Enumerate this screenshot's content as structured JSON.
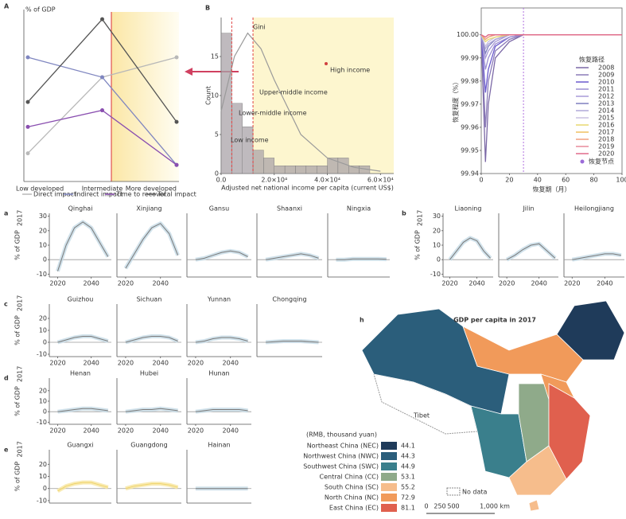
{
  "chart_data": [
    {
      "type": "line",
      "panel_label": "A",
      "ylabel": "% of GDP",
      "categories": [
        "Low developed",
        "Intermediate",
        "More developed"
      ],
      "ylim": [
        0,
        100
      ],
      "series": [
        {
          "name": "Direct impact",
          "color": "#b8b8b8",
          "values": [
            17,
            63,
            75
          ]
        },
        {
          "name": "Indirect impact",
          "color": "#7f86c0",
          "values": [
            75,
            63,
            10
          ]
        },
        {
          "name": "Time to recover",
          "color": "#8a4fb0",
          "values": [
            33,
            43,
            10
          ]
        },
        {
          "name": "Total impact",
          "color": "#555555",
          "values": [
            48,
            98,
            36
          ]
        }
      ]
    },
    {
      "type": "histogram",
      "panel_label": "B",
      "ylabel": "Count",
      "xlabel": "Adjusted net national income per capita (current US$)",
      "bins": [
        0,
        4000,
        8000,
        12000,
        16000,
        20000,
        24000,
        28000,
        32000,
        36000,
        40000,
        44000,
        48000,
        52000,
        56000,
        60000,
        64000
      ],
      "counts": [
        18,
        9,
        6,
        3,
        2,
        1,
        1,
        1,
        1,
        1,
        2,
        2,
        1,
        1,
        0,
        0
      ],
      "color": "#a9a3a8",
      "xlim": [
        0,
        65000
      ],
      "ylim": [
        0,
        20
      ],
      "xticks": [
        {
          "value": 0,
          "label": "0.0"
        },
        {
          "value": 20000,
          "label": "2.0×10⁴"
        },
        {
          "value": 40000,
          "label": "4.0×10⁴"
        },
        {
          "value": 60000,
          "label": "6.0×10⁴"
        }
      ],
      "yticks": [
        0,
        5,
        10,
        15
      ],
      "curve": {
        "x": [
          0,
          5000,
          10000,
          15000,
          20000,
          30000,
          40000,
          50000,
          60000
        ],
        "values": [
          8,
          15,
          18,
          16,
          12,
          5,
          2,
          0.8,
          0.3
        ],
        "color": "#9a9a9a"
      },
      "thresholds": [
        4000,
        12000
      ],
      "annotations": [
        "Gini",
        "Upper-middle income",
        "Lower-middle income",
        "Low income",
        "High income"
      ]
    },
    {
      "type": "line",
      "ylabel": "恢复程度（%）",
      "xlabel": "恢复期（月）",
      "x": [
        0,
        3,
        5,
        10,
        20,
        30,
        50,
        100
      ],
      "xlim": [
        0,
        100
      ],
      "ylim": [
        99.94,
        100.003
      ],
      "xticks": [
        0,
        20,
        40,
        60,
        80,
        100
      ],
      "yticks": [
        99.94,
        99.95,
        99.96,
        99.97,
        99.98,
        99.99,
        {
          "value": 100,
          "label": "100.00"
        }
      ],
      "legend_title": "恢复路径",
      "node_label": "恢复节点",
      "node_x": 30,
      "series": [
        {
          "name": "2008",
          "color": "#7b68a6",
          "values": [
            100,
            99.945,
            99.97,
            99.99,
            99.997,
            100,
            100,
            100
          ]
        },
        {
          "name": "2009",
          "color": "#8a7ab8",
          "values": [
            100,
            99.96,
            99.98,
            99.993,
            99.998,
            100,
            100,
            100
          ]
        },
        {
          "name": "2010",
          "color": "#6a5acd",
          "values": [
            100,
            99.975,
            99.985,
            99.995,
            99.999,
            100,
            100,
            100
          ]
        },
        {
          "name": "2011",
          "color": "#9b8fd0",
          "values": [
            100,
            99.985,
            99.99,
            99.996,
            99.999,
            100,
            100,
            100
          ]
        },
        {
          "name": "2012",
          "color": "#a99bd8",
          "values": [
            100,
            99.99,
            99.993,
            99.997,
            100,
            100,
            100,
            100
          ]
        },
        {
          "name": "2013",
          "color": "#7f7fbf",
          "values": [
            100,
            99.992,
            99.995,
            99.998,
            100,
            100,
            100,
            100
          ]
        },
        {
          "name": "2014",
          "color": "#b0a8d8",
          "values": [
            100,
            99.994,
            99.996,
            99.998,
            100,
            100,
            100,
            100
          ]
        },
        {
          "name": "2015",
          "color": "#c8c0e0",
          "values": [
            100,
            99.995,
            99.997,
            99.999,
            100,
            100,
            100,
            100
          ]
        },
        {
          "name": "2016",
          "color": "#e8d870",
          "values": [
            100,
            99.997,
            99.998,
            99.999,
            100,
            100,
            100,
            100
          ]
        },
        {
          "name": "2017",
          "color": "#f0c060",
          "values": [
            100,
            99.998,
            99.999,
            100,
            100,
            100,
            100,
            100
          ]
        },
        {
          "name": "2018",
          "color": "#f0a080",
          "values": [
            100,
            99.998,
            99.999,
            100,
            100,
            100,
            100,
            100
          ]
        },
        {
          "name": "2019",
          "color": "#e88a9a",
          "values": [
            100,
            99.999,
            100,
            100,
            100,
            100,
            100,
            100
          ]
        },
        {
          "name": "2020",
          "color": "#e06a8a",
          "values": [
            100,
            99.999,
            100,
            100,
            100,
            100,
            100,
            100
          ]
        }
      ]
    },
    {
      "type": "line",
      "panel_label": "a",
      "title": "Qinghai",
      "ylabel": "% of GDP",
      "ylabel_sub": "2017",
      "x": [
        2020,
        2025,
        2030,
        2035,
        2040,
        2045,
        2050
      ],
      "values": [
        -8,
        10,
        22,
        26,
        22,
        12,
        2
      ],
      "color": "#7a7a7a",
      "xlim": [
        2015,
        2052
      ],
      "ylim": [
        -12,
        32
      ],
      "xticks": [
        2020,
        2040
      ],
      "yticks": [
        -10,
        0,
        10,
        20,
        30
      ]
    },
    {
      "type": "line",
      "title": "Xinjiang",
      "x": [
        2020,
        2025,
        2030,
        2035,
        2040,
        2045,
        2050
      ],
      "values": [
        -6,
        4,
        14,
        22,
        25,
        18,
        3
      ],
      "color": "#7a7a7a",
      "xlim": [
        2015,
        2052
      ],
      "ylim": [
        -12,
        32
      ],
      "xticks": [
        2020,
        2040
      ]
    },
    {
      "type": "line",
      "title": "Gansu",
      "x": [
        2020,
        2025,
        2030,
        2035,
        2040,
        2045,
        2050
      ],
      "values": [
        0,
        1,
        3,
        5,
        6,
        5,
        2
      ],
      "color": "#7a7a7a",
      "xlim": [
        2015,
        2052
      ],
      "ylim": [
        -12,
        32
      ]
    },
    {
      "type": "line",
      "title": "Shaanxi",
      "x": [
        2020,
        2025,
        2030,
        2035,
        2040,
        2045,
        2050
      ],
      "values": [
        0,
        1,
        2,
        3,
        4,
        3,
        1
      ],
      "color": "#7a7a7a",
      "xlim": [
        2015,
        2052
      ],
      "ylim": [
        -12,
        32
      ]
    },
    {
      "type": "line",
      "title": "Ningxia",
      "x": [
        2020,
        2025,
        2030,
        2035,
        2040,
        2045,
        2050
      ],
      "values": [
        0,
        0,
        0.5,
        0.5,
        0.5,
        0.5,
        0.3
      ],
      "color": "#7a7a7a",
      "xlim": [
        2015,
        2052
      ],
      "ylim": [
        -12,
        32
      ]
    },
    {
      "type": "line",
      "panel_label": "b",
      "title": "Liaoning",
      "ylabel": "% of GDP",
      "ylabel_sub": "2017",
      "x": [
        2020,
        2025,
        2030,
        2035,
        2040,
        2045,
        2050
      ],
      "values": [
        0,
        6,
        12,
        15,
        13,
        6,
        1
      ],
      "color": "#7a7a7a",
      "xlim": [
        2015,
        2052
      ],
      "ylim": [
        -12,
        32
      ],
      "xticks": [
        2020,
        2040
      ],
      "yticks": [
        -10,
        0,
        10,
        20,
        30
      ]
    },
    {
      "type": "line",
      "title": "Jilin",
      "x": [
        2020,
        2025,
        2030,
        2035,
        2040,
        2045,
        2050
      ],
      "values": [
        0,
        3,
        7,
        10,
        11,
        6,
        1
      ],
      "color": "#7a7a7a",
      "xlim": [
        2015,
        2052
      ],
      "ylim": [
        -12,
        32
      ],
      "xticks": [
        2020,
        2040
      ]
    },
    {
      "type": "line",
      "title": "Heilongjiang",
      "x": [
        2020,
        2025,
        2030,
        2035,
        2040,
        2045,
        2050
      ],
      "values": [
        0,
        1,
        2,
        3,
        4,
        4,
        3
      ],
      "color": "#7a7a7a",
      "xlim": [
        2015,
        2052
      ],
      "ylim": [
        -12,
        32
      ],
      "xticks": [
        2020,
        2040
      ]
    },
    {
      "type": "line",
      "panel_label": "c",
      "title": "Guizhou",
      "ylabel": "% of GDP",
      "ylabel_sub": "2017",
      "x": [
        2020,
        2025,
        2030,
        2035,
        2040,
        2045,
        2050
      ],
      "values": [
        0,
        2,
        4,
        5,
        5,
        3,
        1
      ],
      "color": "#7a7a7a",
      "xlim": [
        2015,
        2052
      ],
      "ylim": [
        -12,
        32
      ],
      "xticks": [
        2020,
        2040
      ],
      "yticks": [
        -10,
        0,
        10,
        20
      ]
    },
    {
      "type": "line",
      "title": "Sichuan",
      "x": [
        2020,
        2025,
        2030,
        2035,
        2040,
        2045,
        2050
      ],
      "values": [
        0,
        2,
        4,
        5,
        5,
        4,
        1
      ],
      "color": "#7a7a7a",
      "xlim": [
        2015,
        2052
      ],
      "ylim": [
        -12,
        32
      ],
      "xticks": [
        2020,
        2040
      ]
    },
    {
      "type": "line",
      "title": "Yunnan",
      "x": [
        2020,
        2025,
        2030,
        2035,
        2040,
        2045,
        2050
      ],
      "values": [
        0,
        1,
        3,
        4,
        4,
        3,
        1
      ],
      "color": "#7a7a7a",
      "xlim": [
        2015,
        2052
      ],
      "ylim": [
        -12,
        32
      ],
      "xticks": [
        2020,
        2040
      ]
    },
    {
      "type": "line",
      "title": "Chongqing",
      "x": [
        2020,
        2025,
        2030,
        2035,
        2040,
        2045,
        2050
      ],
      "values": [
        0,
        0.5,
        1,
        1,
        1,
        0.5,
        0
      ],
      "color": "#7a7a7a",
      "xlim": [
        2015,
        2052
      ],
      "ylim": [
        -12,
        32
      ]
    },
    {
      "type": "line",
      "panel_label": "d",
      "title": "Henan",
      "ylabel": "% of GDP",
      "ylabel_sub": "2017",
      "x": [
        2020,
        2025,
        2030,
        2035,
        2040,
        2045,
        2050
      ],
      "values": [
        0,
        1,
        2,
        3,
        3,
        2,
        1
      ],
      "color": "#7a7a7a",
      "xlim": [
        2015,
        2052
      ],
      "ylim": [
        -12,
        32
      ],
      "xticks": [
        2020,
        2040
      ],
      "yticks": [
        -10,
        0,
        10,
        20
      ]
    },
    {
      "type": "line",
      "title": "Hubei",
      "x": [
        2020,
        2025,
        2030,
        2035,
        2040,
        2045,
        2050
      ],
      "values": [
        0,
        1,
        2,
        2,
        3,
        2,
        1
      ],
      "color": "#7a7a7a",
      "xlim": [
        2015,
        2052
      ],
      "ylim": [
        -12,
        32
      ],
      "xticks": [
        2020,
        2040
      ]
    },
    {
      "type": "line",
      "title": "Hunan",
      "x": [
        2020,
        2025,
        2030,
        2035,
        2040,
        2045,
        2050
      ],
      "values": [
        0,
        1,
        2,
        2,
        2,
        2,
        1
      ],
      "color": "#7a7a7a",
      "xlim": [
        2015,
        2052
      ],
      "ylim": [
        -12,
        32
      ],
      "xticks": [
        2020,
        2040
      ]
    },
    {
      "type": "line",
      "panel_label": "e",
      "title": "Guangxi",
      "ylabel": "% of GDP",
      "ylabel_sub": "2017",
      "x": [
        2020,
        2025,
        2030,
        2035,
        2040,
        2045,
        2050
      ],
      "values": [
        -2,
        2,
        4,
        5,
        5,
        3,
        1
      ],
      "color": "#efd36a",
      "xlim": [
        2015,
        2052
      ],
      "ylim": [
        -12,
        32
      ],
      "yticks": [
        -10,
        0,
        10,
        20
      ]
    },
    {
      "type": "line",
      "title": "Guangdong",
      "x": [
        2020,
        2025,
        2030,
        2035,
        2040,
        2045,
        2050
      ],
      "values": [
        0,
        2,
        3,
        4,
        4,
        3,
        1
      ],
      "color": "#efd36a",
      "xlim": [
        2015,
        2052
      ],
      "ylim": [
        -12,
        32
      ]
    },
    {
      "type": "line",
      "title": "Hainan",
      "x": [
        2020,
        2025,
        2030,
        2035,
        2040,
        2045,
        2050
      ],
      "values": [
        0,
        0,
        0,
        0,
        0,
        0,
        0
      ],
      "color": "#7a7a7a",
      "xlim": [
        2015,
        2052
      ],
      "ylim": [
        -12,
        32
      ]
    },
    {
      "type": "map",
      "panel_label": "h",
      "title": "GDP per capita in 2017",
      "legend_title": "(RMB, thousand yuan)",
      "regions": [
        {
          "name": "Northeast China (NEC)",
          "value": 44.1,
          "color": "#1f3b5a"
        },
        {
          "name": "Northwest China (NWC)",
          "value": 44.3,
          "color": "#2b5e7b"
        },
        {
          "name": "Southwest China (SWC)",
          "value": 44.9,
          "color": "#3a7f8c"
        },
        {
          "name": "Central China (CC)",
          "value": 53.1,
          "color": "#8faa8a"
        },
        {
          "name": "South China (SC)",
          "value": 55.2,
          "color": "#f6bd8c"
        },
        {
          "name": "North China (NC)",
          "value": 72.9,
          "color": "#f19a5a"
        },
        {
          "name": "East China (EC)",
          "value": 81.1,
          "color": "#e0604e"
        }
      ],
      "no_data_label": "No data",
      "place_label": "Tibet",
      "scale_labels": [
        "0",
        "250",
        "500",
        "1,000 km"
      ]
    }
  ]
}
